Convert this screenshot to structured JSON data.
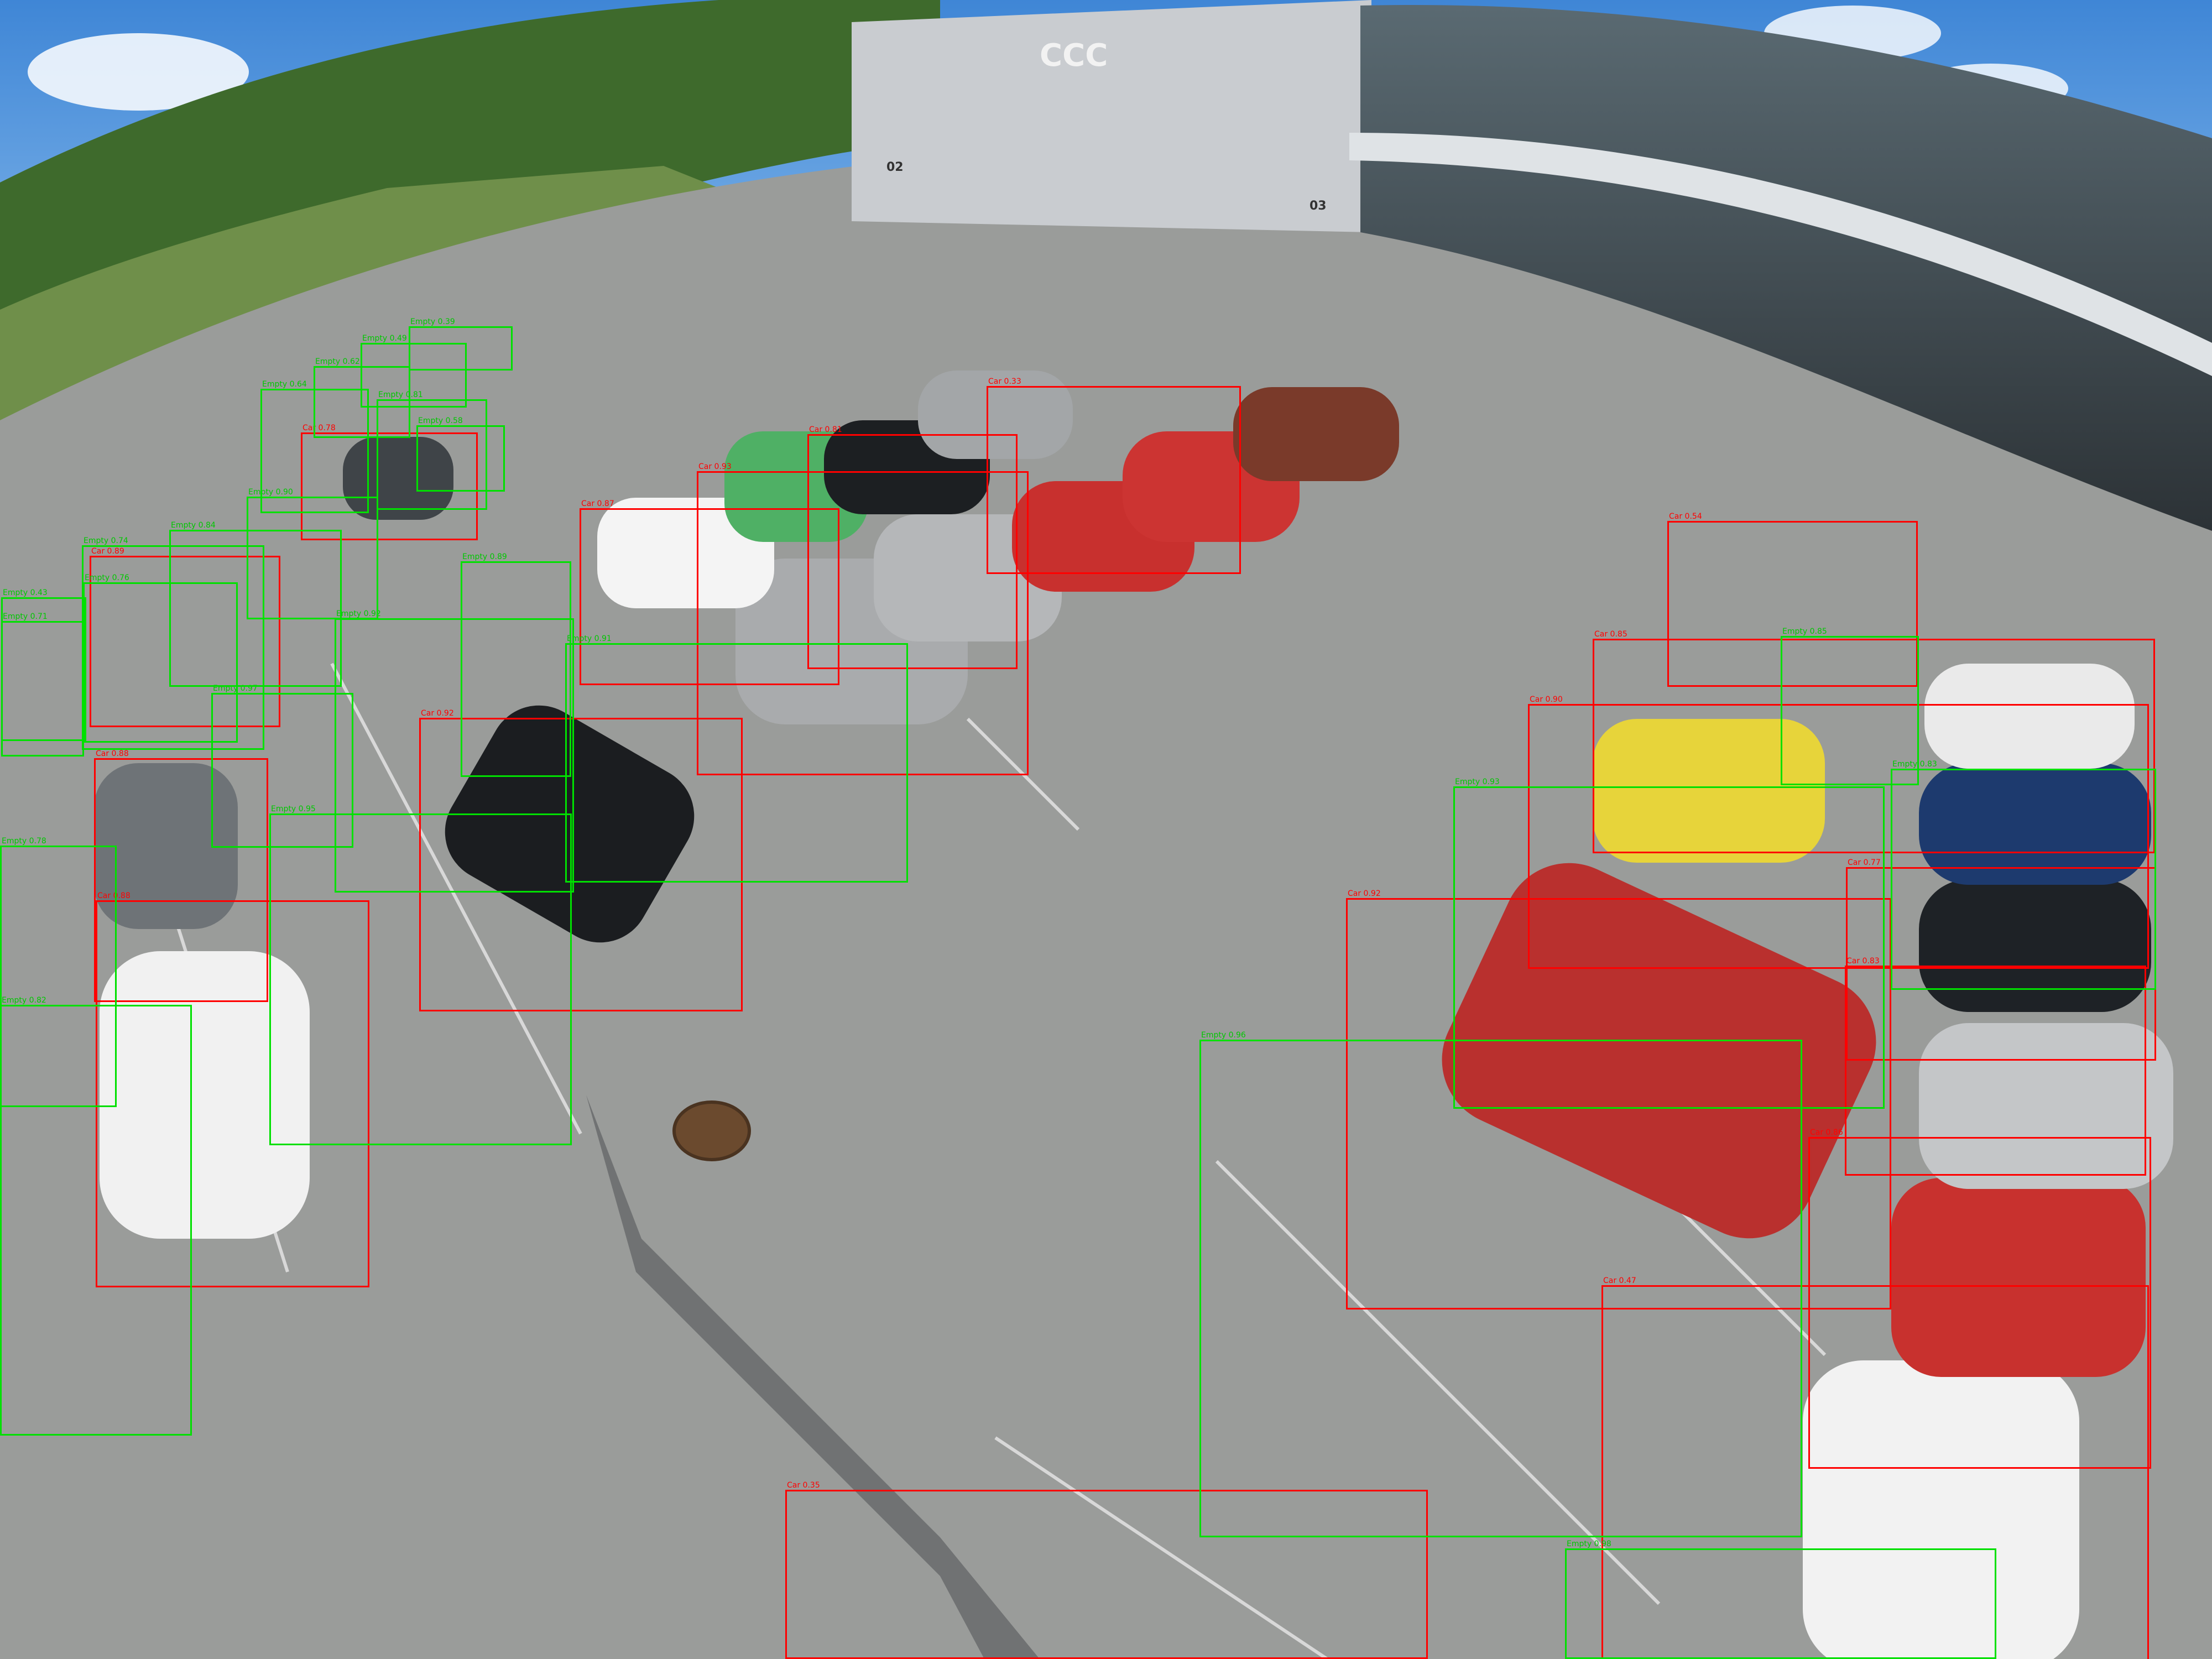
{
  "scene": {
    "store_sign": "CCC",
    "pole_numbers": [
      "02",
      "03"
    ],
    "colors": {
      "sky": "#4a8fd8",
      "hill": "#3e6a2c",
      "asphalt": "#9a9c9a",
      "building": "#c8ccd0",
      "car_box": "#ff0000",
      "empty_box": "#00e000"
    }
  },
  "detections": [
    {
      "cls": "car",
      "label": "Car 0.92"
    },
    {
      "cls": "car",
      "label": "Car 0.92"
    },
    {
      "cls": "car",
      "label": "Car 0.47"
    },
    {
      "cls": "car",
      "label": "Car 0.35"
    },
    {
      "cls": "car",
      "label": "Car 0.90"
    },
    {
      "cls": "car",
      "label": "Car 0.85"
    },
    {
      "cls": "car",
      "label": "Car 0.88"
    },
    {
      "cls": "car",
      "label": "Car 0.93"
    },
    {
      "cls": "car",
      "label": "Car 0.87"
    },
    {
      "cls": "car",
      "label": "Car 0.88"
    },
    {
      "cls": "car",
      "label": "Car 0.89"
    },
    {
      "cls": "car",
      "label": "Car 0.81"
    },
    {
      "cls": "car",
      "label": "Car 0.78"
    },
    {
      "cls": "car",
      "label": "Car 0.54"
    },
    {
      "cls": "car",
      "label": "Car 0.77"
    },
    {
      "cls": "car",
      "label": "Car 0.83"
    },
    {
      "cls": "car",
      "label": "Car 0.86"
    },
    {
      "cls": "car",
      "label": "Car 0.33"
    },
    {
      "cls": "empty",
      "label": "Empty 0.96"
    },
    {
      "cls": "empty",
      "label": "Empty 0.93"
    },
    {
      "cls": "empty",
      "label": "Empty 0.91"
    },
    {
      "cls": "empty",
      "label": "Empty 0.89"
    },
    {
      "cls": "empty",
      "label": "Empty 0.92"
    },
    {
      "cls": "empty",
      "label": "Empty 0.97"
    },
    {
      "cls": "empty",
      "label": "Empty 0.95"
    },
    {
      "cls": "empty",
      "label": "Empty 0.78"
    },
    {
      "cls": "empty",
      "label": "Empty 0.82"
    },
    {
      "cls": "empty",
      "label": "Empty 0.43"
    },
    {
      "cls": "empty",
      "label": "Empty 0.71"
    },
    {
      "cls": "empty",
      "label": "Empty 0.74"
    },
    {
      "cls": "empty",
      "label": "Empty 0.76"
    },
    {
      "cls": "empty",
      "label": "Empty 0.84"
    },
    {
      "cls": "empty",
      "label": "Empty 0.90"
    },
    {
      "cls": "empty",
      "label": "Empty 0.64"
    },
    {
      "cls": "empty",
      "label": "Empty 0.62"
    },
    {
      "cls": "empty",
      "label": "Empty 0.49"
    },
    {
      "cls": "empty",
      "label": "Empty 0.39"
    },
    {
      "cls": "empty",
      "label": "Empty 0.81"
    },
    {
      "cls": "empty",
      "label": "Empty 0.58"
    },
    {
      "cls": "empty",
      "label": "Empty 0.85"
    },
    {
      "cls": "empty",
      "label": "Empty 0.83"
    },
    {
      "cls": "empty",
      "label": "Empty 0.98"
    }
  ]
}
